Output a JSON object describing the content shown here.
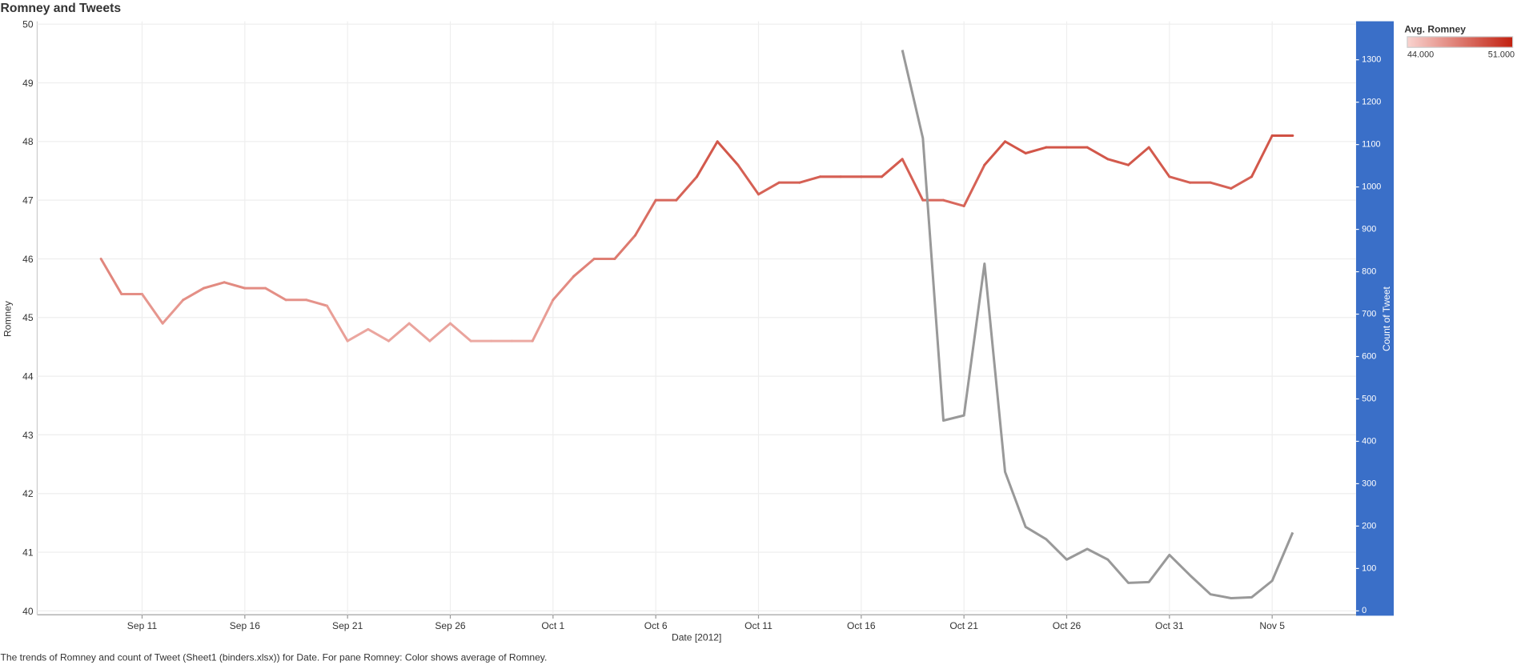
{
  "chart_data": {
    "type": "line",
    "title": "Romney and Tweets",
    "x_label": "Date [2012]",
    "y_label": "Romney",
    "y2_label": "Count of Tweet",
    "caption": "The trends of Romney and count of Tweet (Sheet1 (binders.xlsx)) for Date.  For pane Romney:  Color shows average of Romney.",
    "categories": [
      "Sep 9",
      "Sep 10",
      "Sep 11",
      "Sep 12",
      "Sep 13",
      "Sep 14",
      "Sep 15",
      "Sep 16",
      "Sep 17",
      "Sep 18",
      "Sep 19",
      "Sep 20",
      "Sep 21",
      "Sep 22",
      "Sep 23",
      "Sep 24",
      "Sep 25",
      "Sep 26",
      "Sep 27",
      "Sep 28",
      "Sep 29",
      "Sep 30",
      "Oct 1",
      "Oct 2",
      "Oct 3",
      "Oct 4",
      "Oct 5",
      "Oct 6",
      "Oct 7",
      "Oct 8",
      "Oct 9",
      "Oct 10",
      "Oct 11",
      "Oct 12",
      "Oct 13",
      "Oct 14",
      "Oct 15",
      "Oct 16",
      "Oct 17",
      "Oct 18",
      "Oct 19",
      "Oct 20",
      "Oct 21",
      "Oct 22",
      "Oct 23",
      "Oct 24",
      "Oct 25",
      "Oct 26",
      "Oct 27",
      "Oct 28",
      "Oct 29",
      "Oct 30",
      "Oct 31",
      "Nov 1",
      "Nov 2",
      "Nov 3",
      "Nov 4",
      "Nov 5",
      "Nov 6"
    ],
    "xticks": [
      "Sep 11",
      "Sep 16",
      "Sep 21",
      "Sep 26",
      "Oct 1",
      "Oct 6",
      "Oct 11",
      "Oct 16",
      "Oct 21",
      "Oct 26",
      "Oct 31",
      "Nov 5"
    ],
    "series": [
      {
        "name": "Romney",
        "color_by_value": true,
        "values": [
          46.0,
          45.4,
          45.4,
          44.9,
          45.3,
          45.5,
          45.6,
          45.5,
          45.5,
          45.3,
          45.3,
          45.2,
          44.6,
          44.8,
          44.6,
          44.9,
          44.6,
          44.9,
          44.6,
          44.6,
          44.6,
          44.6,
          45.3,
          45.7,
          46.0,
          46.0,
          46.4,
          47.0,
          47.0,
          47.4,
          48.0,
          47.6,
          47.1,
          47.3,
          47.3,
          47.4,
          47.4,
          47.4,
          47.4,
          47.7,
          47.0,
          47.0,
          46.9,
          47.6,
          48.0,
          47.8,
          47.9,
          47.9,
          47.9,
          47.7,
          47.6,
          47.9,
          47.4,
          47.3,
          47.3,
          47.2,
          47.4,
          48.1,
          48.1
        ]
      },
      {
        "name": "Count of Tweet",
        "axis": "y2",
        "color": "#999999",
        "values": [
          null,
          null,
          null,
          null,
          null,
          null,
          null,
          null,
          null,
          null,
          null,
          null,
          null,
          null,
          null,
          null,
          null,
          null,
          null,
          null,
          null,
          null,
          null,
          null,
          null,
          null,
          null,
          null,
          null,
          null,
          null,
          null,
          null,
          null,
          null,
          null,
          null,
          null,
          null,
          1323,
          1115,
          449,
          461,
          819,
          328,
          198,
          169,
          121,
          146,
          121,
          66,
          68,
          132,
          84,
          39,
          30,
          32,
          71,
          185
        ]
      }
    ],
    "ylim": [
      40,
      50
    ],
    "yticks": [
      40,
      41,
      42,
      43,
      44,
      45,
      46,
      47,
      48,
      49,
      50
    ],
    "y2lim": [
      0,
      1384
    ],
    "y2ticks": [
      0,
      100,
      200,
      300,
      400,
      500,
      600,
      700,
      800,
      900,
      1000,
      1100,
      1200,
      1300
    ],
    "grid": true,
    "color_legend": {
      "title": "Avg. Romney",
      "colors": [
        "#f9d3cf",
        "#c1200f"
      ],
      "range": [
        {
          "value": 44,
          "label": "44.000"
        },
        {
          "value": 51,
          "label": "51.000"
        }
      ]
    }
  }
}
